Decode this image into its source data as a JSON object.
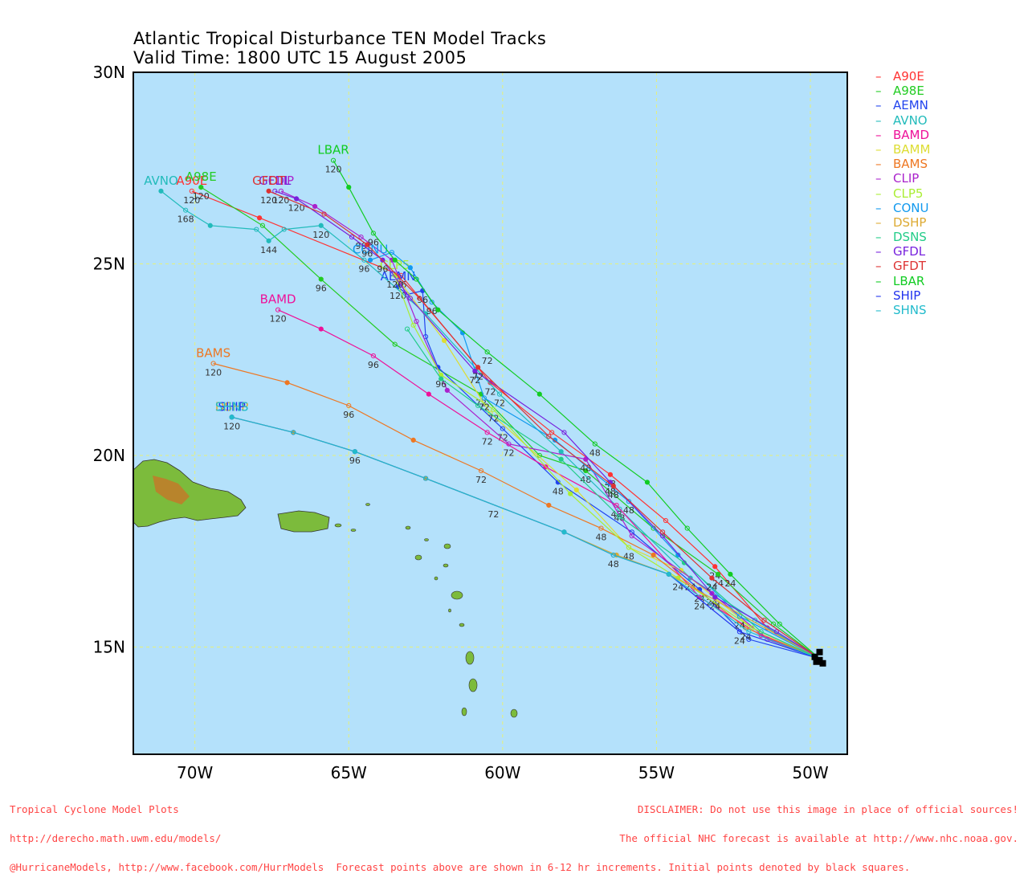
{
  "title": "Atlantic Tropical Disturbance TEN Model Tracks",
  "subtitle": "Valid Time: 1800 UTC 15 August 2005",
  "colors": {
    "ocean": "#b4e1fb",
    "grid": "#e6f07a",
    "frame": "#000000",
    "land": "#7cbb3c",
    "footer": "#ff4444"
  },
  "map": {
    "lon_range": [
      -72.0,
      -48.8
    ],
    "lat_range": [
      12.2,
      30.0
    ],
    "lat_ticks": [
      "30N",
      "25N",
      "20N",
      "15N"
    ],
    "lon_ticks": [
      "70W",
      "65W",
      "60W",
      "55W",
      "50W"
    ],
    "grid": true
  },
  "initial_position": {
    "lat": 14.7,
    "lon": -49.7,
    "marker": "black-square"
  },
  "models": [
    {
      "name": "A90E",
      "color": "#ff3333",
      "points": [
        [
          -49.7,
          14.7
        ],
        [
          -51.4,
          15.5
        ],
        [
          -53.1,
          17.1
        ],
        [
          -54.7,
          18.3
        ],
        [
          -56.5,
          19.5
        ],
        [
          -58.4,
          20.6
        ],
        [
          -60.4,
          21.9
        ],
        [
          -63.3,
          24.7
        ],
        [
          -67.9,
          26.2
        ],
        [
          -70.1,
          26.9
        ]
      ],
      "labels": [
        [
          -53.1,
          17.1,
          "24"
        ],
        [
          -56.5,
          19.5,
          "48"
        ],
        [
          -60.4,
          21.9,
          "72"
        ],
        [
          -63.3,
          24.7,
          "96"
        ],
        [
          -70.1,
          26.9,
          "120"
        ]
      ],
      "end_label": "A90E"
    },
    {
      "name": "A98E",
      "color": "#22cc22",
      "points": [
        [
          -49.7,
          14.7
        ],
        [
          -51.2,
          15.6
        ],
        [
          -53.0,
          16.9
        ],
        [
          -55.1,
          18.1
        ],
        [
          -57.3,
          19.6
        ],
        [
          -58.8,
          20.0
        ],
        [
          -60.7,
          21.6
        ],
        [
          -63.5,
          22.9
        ],
        [
          -65.9,
          24.6
        ],
        [
          -67.8,
          26.0
        ],
        [
          -69.8,
          27.0
        ]
      ],
      "labels": [
        [
          -53.0,
          16.9,
          "24"
        ],
        [
          -57.3,
          19.6,
          "48"
        ],
        [
          -60.7,
          21.6,
          "72"
        ],
        [
          -65.9,
          24.6,
          "96"
        ],
        [
          -69.8,
          27.0,
          "120"
        ]
      ],
      "end_label": "A98E"
    },
    {
      "name": "AEMN",
      "color": "#2244ee",
      "points": [
        [
          -49.7,
          14.7
        ],
        [
          -52.0,
          15.2
        ],
        [
          -53.6,
          16.5
        ],
        [
          -55.8,
          18.0
        ],
        [
          -58.2,
          19.3
        ],
        [
          -60.0,
          20.7
        ],
        [
          -62.1,
          22.3
        ],
        [
          -62.5,
          23.1
        ],
        [
          -62.6,
          24.3
        ],
        [
          -63.1,
          24.2
        ],
        [
          -63.4,
          24.4
        ]
      ],
      "labels": [
        [
          -53.6,
          16.5,
          "24"
        ],
        [
          -58.2,
          19.3,
          "48"
        ],
        [
          -60.0,
          20.7,
          "72"
        ],
        [
          -62.6,
          24.3,
          "96"
        ],
        [
          -63.4,
          24.4,
          "120"
        ]
      ],
      "end_label": "AEMN"
    },
    {
      "name": "AVNO",
      "color": "#22bbbb",
      "points": [
        [
          -49.7,
          14.7
        ],
        [
          -51.8,
          15.7
        ],
        [
          -53.9,
          16.8
        ],
        [
          -56.2,
          18.6
        ],
        [
          -58.1,
          20.1
        ],
        [
          -60.1,
          21.6
        ],
        [
          -62.5,
          23.7
        ],
        [
          -64.5,
          25.1
        ],
        [
          -65.9,
          26.0
        ],
        [
          -67.1,
          25.9
        ],
        [
          -67.6,
          25.6
        ],
        [
          -68.0,
          25.9
        ],
        [
          -69.5,
          26.0
        ],
        [
          -70.3,
          26.4
        ],
        [
          -71.1,
          26.9
        ]
      ],
      "labels": [
        [
          -53.9,
          16.8,
          "24"
        ],
        [
          -56.2,
          18.6,
          "48"
        ],
        [
          -60.1,
          21.6,
          "72"
        ],
        [
          -64.5,
          25.1,
          "96"
        ],
        [
          -67.6,
          25.6,
          "144"
        ],
        [
          -70.3,
          26.4,
          "168"
        ],
        [
          -65.9,
          26.0,
          "120"
        ]
      ],
      "end_label": "AVNO"
    },
    {
      "name": "BAMD",
      "color": "#ee1199",
      "points": [
        [
          -49.7,
          14.7
        ],
        [
          -51.6,
          15.3
        ],
        [
          -53.6,
          16.3
        ],
        [
          -56.3,
          18.7
        ],
        [
          -58.6,
          19.7
        ],
        [
          -60.5,
          20.6
        ],
        [
          -62.4,
          21.6
        ],
        [
          -64.2,
          22.6
        ],
        [
          -65.9,
          23.3
        ],
        [
          -67.3,
          23.8
        ]
      ],
      "labels": [
        [
          -53.6,
          16.3,
          "24"
        ],
        [
          -56.3,
          18.7,
          "48"
        ],
        [
          -60.5,
          20.6,
          "72"
        ],
        [
          -64.2,
          22.6,
          "96"
        ],
        [
          -67.3,
          23.8,
          "120"
        ]
      ],
      "end_label": "BAMD"
    },
    {
      "name": "BAMM",
      "color": "#dddd33",
      "points": [
        [
          -49.7,
          14.7
        ],
        [
          -51.9,
          15.5
        ],
        [
          -54.2,
          17.0
        ],
        [
          -55.9,
          17.6
        ],
        [
          -57.6,
          19.1
        ],
        [
          -60.4,
          21.1
        ],
        [
          -61.9,
          23.0
        ],
        [
          -63.4,
          24.6
        ]
      ],
      "labels": [],
      "end_label": ""
    },
    {
      "name": "BAMS",
      "color": "#ee7722",
      "points": [
        [
          -49.7,
          14.7
        ],
        [
          -52.1,
          15.5
        ],
        [
          -55.1,
          17.4
        ],
        [
          -56.8,
          18.1
        ],
        [
          -58.5,
          18.7
        ],
        [
          -60.7,
          19.6
        ],
        [
          -62.9,
          20.4
        ],
        [
          -65.0,
          21.3
        ],
        [
          -67.0,
          21.9
        ],
        [
          -69.4,
          22.4
        ]
      ],
      "labels": [
        [
          -52.1,
          15.5,
          "24"
        ],
        [
          -56.8,
          18.1,
          "48"
        ],
        [
          -60.7,
          19.6,
          "72"
        ],
        [
          -65.0,
          21.3,
          "96"
        ],
        [
          -69.4,
          22.4,
          "120"
        ]
      ],
      "end_label": "BAMS"
    },
    {
      "name": "CLIP",
      "color": "#aa22cc",
      "points": [
        [
          -49.7,
          14.7
        ],
        [
          -51.4,
          15.2
        ],
        [
          -53.2,
          16.4
        ],
        [
          -55.8,
          17.9
        ],
        [
          -57.3,
          19.9
        ],
        [
          -59.8,
          20.3
        ],
        [
          -61.8,
          21.7
        ],
        [
          -62.8,
          23.5
        ],
        [
          -63.6,
          25.1
        ],
        [
          -64.6,
          25.7
        ],
        [
          -66.1,
          26.5
        ],
        [
          -67.2,
          26.9
        ]
      ],
      "labels": [
        [
          -53.2,
          16.4,
          "24"
        ],
        [
          -57.3,
          19.9,
          "48"
        ],
        [
          -59.8,
          20.3,
          "72"
        ],
        [
          -64.6,
          25.7,
          "96"
        ],
        [
          -67.2,
          26.9,
          "120"
        ]
      ],
      "end_label": "CLIP"
    },
    {
      "name": "CLP5",
      "color": "#aaee33",
      "points": [
        [
          -49.7,
          14.7
        ],
        [
          -51.9,
          15.5
        ],
        [
          -54.3,
          16.8
        ],
        [
          -55.9,
          17.6
        ],
        [
          -57.8,
          19.0
        ],
        [
          -60.3,
          21.2
        ],
        [
          -62.0,
          22.1
        ],
        [
          -62.9,
          23.4
        ],
        [
          -63.5,
          24.7
        ]
      ],
      "labels": [
        [
          -54.3,
          16.8,
          "24"
        ],
        [
          -55.9,
          17.6,
          "48"
        ],
        [
          -60.3,
          21.2,
          "72"
        ],
        [
          -62.0,
          22.1,
          "96"
        ],
        [
          -63.5,
          24.7,
          "120"
        ]
      ],
      "end_label": "CLP5"
    },
    {
      "name": "CONU",
      "color": "#1199ee",
      "points": [
        [
          -49.7,
          14.7
        ],
        [
          -52.3,
          15.8
        ],
        [
          -54.3,
          17.4
        ],
        [
          -55.9,
          18.8
        ],
        [
          -58.3,
          20.4
        ],
        [
          -60.6,
          21.5
        ],
        [
          -61.3,
          23.2
        ],
        [
          -62.3,
          24.0
        ],
        [
          -63.0,
          24.9
        ],
        [
          -63.6,
          25.3
        ],
        [
          -64.3,
          25.1
        ]
      ],
      "labels": [
        [
          -52.3,
          15.8,
          "24"
        ],
        [
          -55.9,
          18.8,
          "48"
        ],
        [
          -60.6,
          21.5,
          "72"
        ],
        [
          -62.3,
          24.0,
          "96"
        ]
      ],
      "end_label": "CONU"
    },
    {
      "name": "DSHP",
      "color": "#ddaa33",
      "points": [
        [
          -49.7,
          14.7
        ],
        [
          -54.6,
          16.9
        ],
        [
          -56.3,
          17.4
        ],
        [
          -58.0,
          18.0
        ],
        [
          -62.5,
          19.4
        ],
        [
          -64.8,
          20.1
        ],
        [
          -66.8,
          20.6
        ],
        [
          -68.8,
          21.0
        ]
      ],
      "labels": [],
      "end_label": "DSHP"
    },
    {
      "name": "DSNS",
      "color": "#22cc88",
      "points": [
        [
          -49.7,
          14.7
        ],
        [
          -51.6,
          15.4
        ],
        [
          -54.1,
          17.2
        ],
        [
          -56.2,
          18.4
        ],
        [
          -58.1,
          19.9
        ],
        [
          -60.8,
          21.3
        ],
        [
          -62.0,
          22.0
        ],
        [
          -63.1,
          23.3
        ]
      ],
      "labels": [],
      "end_label": ""
    },
    {
      "name": "GFDL",
      "color": "#7722dd",
      "points": [
        [
          -49.7,
          14.7
        ],
        [
          -51.1,
          15.4
        ],
        [
          -53.1,
          16.3
        ],
        [
          -54.8,
          17.9
        ],
        [
          -56.5,
          19.3
        ],
        [
          -58.0,
          20.6
        ],
        [
          -60.9,
          22.2
        ],
        [
          -63.0,
          24.1
        ],
        [
          -63.9,
          25.1
        ],
        [
          -64.9,
          25.7
        ],
        [
          -66.7,
          26.7
        ],
        [
          -67.4,
          26.9
        ]
      ],
      "labels": [
        [
          -53.1,
          16.3,
          "24"
        ],
        [
          -56.5,
          19.3,
          "48"
        ],
        [
          -60.9,
          22.2,
          "72"
        ],
        [
          -63.9,
          25.1,
          "96"
        ],
        [
          -66.7,
          26.7,
          "120"
        ]
      ],
      "end_label": "GFDL"
    },
    {
      "name": "GFDT",
      "color": "#dd3333",
      "points": [
        [
          -49.7,
          14.7
        ],
        [
          -51.5,
          15.7
        ],
        [
          -53.2,
          16.8
        ],
        [
          -54.8,
          18.0
        ],
        [
          -56.4,
          19.2
        ],
        [
          -58.5,
          20.5
        ],
        [
          -60.8,
          22.3
        ],
        [
          -62.7,
          24.1
        ],
        [
          -64.4,
          25.5
        ],
        [
          -65.8,
          26.3
        ],
        [
          -67.6,
          26.9
        ]
      ],
      "labels": [
        [
          -53.2,
          16.8,
          "24"
        ],
        [
          -56.4,
          19.2,
          "48"
        ],
        [
          -60.8,
          22.3,
          "72"
        ],
        [
          -64.4,
          25.5,
          "96"
        ],
        [
          -67.6,
          26.9,
          "120"
        ]
      ],
      "end_label": "GFDT"
    },
    {
      "name": "LBAR",
      "color": "#11cc22",
      "points": [
        [
          -49.7,
          14.7
        ],
        [
          -51.0,
          15.6
        ],
        [
          -52.6,
          16.9
        ],
        [
          -54.0,
          18.1
        ],
        [
          -55.3,
          19.3
        ],
        [
          -57.0,
          20.3
        ],
        [
          -58.8,
          21.6
        ],
        [
          -60.5,
          22.7
        ],
        [
          -62.1,
          23.8
        ],
        [
          -62.8,
          24.6
        ],
        [
          -63.5,
          25.1
        ],
        [
          -64.2,
          25.8
        ],
        [
          -65.0,
          27.0
        ],
        [
          -65.5,
          27.7
        ]
      ],
      "labels": [
        [
          -52.6,
          16.9,
          "24"
        ],
        [
          -57.0,
          20.3,
          "48"
        ],
        [
          -60.5,
          22.7,
          "72"
        ],
        [
          -64.2,
          25.8,
          "96"
        ],
        [
          -65.5,
          27.7,
          "120"
        ]
      ],
      "end_label": "LBAR"
    },
    {
      "name": "SHIP",
      "color": "#2233ee",
      "points": [
        [
          -49.7,
          14.7
        ],
        [
          -52.3,
          15.4
        ],
        [
          -54.6,
          16.9
        ],
        [
          -56.4,
          17.4
        ],
        [
          -58.0,
          18.0
        ],
        [
          -62.5,
          19.4
        ],
        [
          -64.8,
          20.1
        ],
        [
          -66.8,
          20.6
        ],
        [
          -68.8,
          21.0
        ]
      ],
      "labels": [
        [
          -52.3,
          15.4,
          "24"
        ],
        [
          -56.4,
          17.4,
          "48"
        ],
        [
          -60.3,
          18.7,
          "72"
        ],
        [
          -64.8,
          20.1,
          "96"
        ],
        [
          -68.8,
          21.0,
          "120"
        ]
      ],
      "end_label": "SHIP"
    },
    {
      "name": "SHNS",
      "color": "#22bbcc",
      "points": [
        [
          -49.7,
          14.7
        ],
        [
          -52.0,
          15.4
        ],
        [
          -54.6,
          16.9
        ],
        [
          -56.4,
          17.4
        ],
        [
          -58.0,
          18.0
        ],
        [
          -62.5,
          19.4
        ],
        [
          -64.8,
          20.1
        ],
        [
          -66.8,
          20.6
        ],
        [
          -68.8,
          21.0
        ]
      ],
      "labels": [],
      "end_label": "SHNS"
    }
  ],
  "footer": {
    "left": [
      "Tropical Cyclone Model Plots",
      "http://derecho.math.uwm.edu/models/",
      "@HurricaneModels, http://www.facebook.com/HurrModels  Forecast points above are shown in 6-12 hr increments. Initial points denoted by black squares."
    ],
    "right": [
      "DISCLAIMER: Do not use this image in place of official sources!",
      "The official NHC forecast is available at http://www.nhc.noaa.gov."
    ]
  }
}
